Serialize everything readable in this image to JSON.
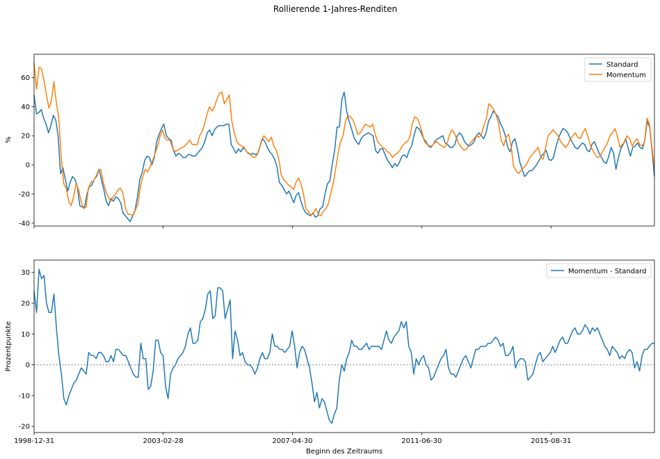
{
  "figure": {
    "title": "Rollierende 1-Jahres-Renditen",
    "xlabel": "Beginn des Zeitraums"
  },
  "chart_data": [
    {
      "type": "line",
      "ylabel": "%",
      "ylim": [
        -42,
        76
      ],
      "yticks": [
        -40,
        -20,
        0,
        20,
        40,
        60
      ],
      "legend_position": "top-right",
      "grid": false,
      "x_start": "1998-12-31",
      "x_end": "2018-12-31",
      "series": [
        {
          "name": "Standard",
          "color": "#1f77b4",
          "values": [
            48,
            35,
            36,
            38,
            32,
            28,
            22,
            27,
            34,
            31,
            20,
            -6,
            -2,
            -10,
            -18,
            -12,
            -8,
            -10,
            -15,
            -28,
            -29,
            -29,
            -20,
            -15,
            -14,
            -10,
            -8,
            -3,
            -10,
            -17,
            -25,
            -28,
            -23,
            -25,
            -22,
            -23,
            -26,
            -33,
            -35,
            -37,
            -39,
            -35,
            -31,
            -22,
            -10,
            -5,
            3,
            6,
            5,
            0,
            5,
            16,
            21,
            25,
            28,
            20,
            18,
            17,
            10,
            6,
            8,
            7,
            5,
            5,
            7,
            7,
            6,
            6,
            8,
            10,
            12,
            16,
            22,
            24,
            20,
            24,
            26,
            27,
            27,
            27,
            28,
            28,
            14,
            11,
            8,
            11,
            9,
            12,
            10,
            8,
            7,
            8,
            7,
            8,
            13,
            18,
            16,
            12,
            9,
            7,
            4,
            -1,
            -12,
            -14,
            -17,
            -20,
            -18,
            -22,
            -26,
            -21,
            -19,
            -25,
            -30,
            -33,
            -34,
            -35,
            -33,
            -36,
            -35,
            -30,
            -29,
            -20,
            -13,
            -11,
            0,
            10,
            26,
            26,
            45,
            50,
            37,
            30,
            25,
            19,
            16,
            14,
            18,
            20,
            21,
            22,
            21,
            20,
            10,
            8,
            11,
            11,
            7,
            3,
            1,
            -2,
            1,
            -1,
            2,
            6,
            7,
            5,
            10,
            13,
            20,
            26,
            25,
            22,
            18,
            16,
            13,
            12,
            14,
            17,
            18,
            19,
            20,
            15,
            14,
            12,
            12,
            14,
            20,
            22,
            20,
            16,
            14,
            13,
            14,
            16,
            20,
            22,
            20,
            18,
            22,
            30,
            33,
            37,
            35,
            33,
            28,
            25,
            20,
            12,
            9,
            16,
            18,
            11,
            2,
            -3,
            -8,
            -6,
            -4,
            -4,
            -2,
            0,
            3,
            6,
            8,
            10,
            4,
            3,
            5,
            12,
            18,
            22,
            25,
            24,
            22,
            18,
            15,
            12,
            11,
            13,
            15,
            14,
            10,
            9,
            14,
            16,
            12,
            8,
            5,
            2,
            1,
            6,
            12,
            8,
            -3,
            5,
            11,
            14,
            18,
            12,
            6,
            12,
            13,
            15,
            12,
            11,
            17,
            30,
            26,
            10,
            -8
          ]
        },
        {
          "name": "Momentum",
          "color": "#ff7f0e",
          "values": [
            70,
            52,
            67,
            66,
            58,
            48,
            39,
            44,
            57,
            43,
            32,
            5,
            -13,
            -16,
            -25,
            -28,
            -22,
            -13,
            -17,
            -25,
            -30,
            -29,
            -16,
            -12,
            -11,
            -8,
            -4,
            -3,
            -12,
            -18,
            -22,
            -25,
            -22,
            -20,
            -17,
            -16,
            -20,
            -30,
            -34,
            -34,
            -35,
            -31,
            -27,
            -15,
            -8,
            -3,
            -5,
            -1,
            3,
            8,
            13,
            20,
            24,
            18,
            17,
            17,
            12,
            9,
            10,
            11,
            12,
            13,
            15,
            17,
            14,
            14,
            14,
            20,
            23,
            28,
            35,
            40,
            37,
            40,
            45,
            49,
            50,
            42,
            45,
            48,
            30,
            22,
            16,
            14,
            13,
            12,
            9,
            8,
            6,
            5,
            6,
            10,
            17,
            20,
            18,
            16,
            19,
            13,
            10,
            4,
            -7,
            -10,
            -12,
            -14,
            -15,
            -17,
            -12,
            -9,
            -13,
            -20,
            -30,
            -32,
            -35,
            -33,
            -30,
            -34,
            -35,
            -32,
            -30,
            -27,
            -20,
            -13,
            -3,
            8,
            16,
            20,
            30,
            34,
            33,
            31,
            26,
            21,
            22,
            25,
            28,
            27,
            26,
            28,
            21,
            16,
            14,
            12,
            11,
            9,
            8,
            5,
            7,
            8,
            10,
            13,
            15,
            16,
            19,
            28,
            33,
            32,
            28,
            22,
            16,
            14,
            13,
            13,
            15,
            16,
            14,
            13,
            12,
            14,
            20,
            24,
            22,
            18,
            14,
            12,
            10,
            11,
            14,
            16,
            18,
            20,
            19,
            21,
            27,
            32,
            42,
            40,
            38,
            34,
            28,
            17,
            13,
            19,
            21,
            13,
            -1,
            -4,
            -6,
            -4,
            -2,
            0,
            3,
            6,
            8,
            10,
            12,
            5,
            4,
            12,
            20,
            22,
            24,
            22,
            20,
            16,
            14,
            12,
            14,
            18,
            20,
            22,
            19,
            18,
            22,
            25,
            20,
            14,
            10,
            7,
            5,
            6,
            9,
            12,
            15,
            20,
            22,
            25,
            20,
            12,
            14,
            16,
            20,
            18,
            13,
            16,
            18,
            14,
            13,
            16,
            32,
            28,
            12,
            -2
          ]
        }
      ]
    },
    {
      "type": "line",
      "ylabel": "Prozentpunkte",
      "ylim": [
        -22,
        34
      ],
      "yticks": [
        -20,
        -10,
        0,
        10,
        20,
        30
      ],
      "legend_position": "top-right",
      "grid": false,
      "reference_line": 0,
      "x_start": "1998-12-31",
      "x_end": "2018-12-31",
      "xticks": [
        "1998-12-31",
        "2003-02-28",
        "2007-04-30",
        "2011-06-30",
        "2015-08-31"
      ],
      "series": [
        {
          "name": "Momentum - Standard",
          "color": "#1f77b4",
          "values": [
            24,
            17,
            31,
            28,
            29,
            20,
            17,
            17,
            23,
            12,
            3,
            -3,
            -11,
            -13,
            -10,
            -8,
            -6,
            -5,
            -3,
            -1,
            -2,
            -3,
            4,
            3,
            3,
            2,
            4,
            4,
            3,
            1,
            1,
            3,
            1,
            5,
            5,
            4,
            3,
            3,
            1,
            -1,
            -3,
            -4,
            -4,
            7,
            2,
            2,
            -8,
            -7,
            -2,
            8,
            8,
            4,
            3,
            -7,
            -11,
            -3,
            -1,
            0,
            2,
            3,
            4,
            6,
            10,
            12,
            7,
            7,
            8,
            14,
            15,
            18,
            23,
            24,
            15,
            16,
            25,
            25,
            24,
            15,
            18,
            21,
            2,
            11,
            8,
            3,
            4,
            1,
            0,
            0,
            -1,
            -3,
            -1,
            2,
            4,
            2,
            2,
            4,
            10,
            6,
            6,
            5,
            5,
            4,
            5,
            6,
            11,
            6,
            -1,
            4,
            6,
            5,
            2,
            -1,
            -6,
            -12,
            -9,
            -14,
            -11,
            -12,
            -15,
            -18,
            -19,
            -16,
            -14,
            -5,
            0,
            -2,
            2,
            4,
            8,
            6,
            6,
            5,
            5,
            6,
            7,
            5,
            6,
            6,
            6,
            6,
            5,
            8,
            11,
            8,
            7,
            9,
            10,
            11,
            14,
            12,
            14,
            6,
            4,
            -3,
            2,
            0,
            2,
            3,
            0,
            -1,
            -5,
            -4,
            -2,
            0,
            2,
            3,
            5,
            -1,
            -3,
            -3,
            -4,
            -2,
            0,
            2,
            3,
            1,
            -1,
            2,
            5,
            5,
            6,
            6,
            6,
            7,
            7,
            8,
            9,
            8,
            6,
            7,
            3,
            3,
            4,
            6,
            -1,
            1,
            2,
            2,
            1,
            -5,
            -4,
            -3,
            0,
            3,
            4,
            1,
            2,
            3,
            4,
            6,
            4,
            6,
            8,
            9,
            7,
            7,
            9,
            11,
            12,
            10,
            10,
            11,
            13,
            12,
            10,
            12,
            11,
            12,
            10,
            8,
            6,
            5,
            3,
            6,
            5,
            4,
            2,
            3,
            2,
            4,
            5,
            4,
            -1,
            1,
            -2,
            3,
            5,
            5,
            6,
            7,
            7
          ]
        }
      ]
    }
  ]
}
